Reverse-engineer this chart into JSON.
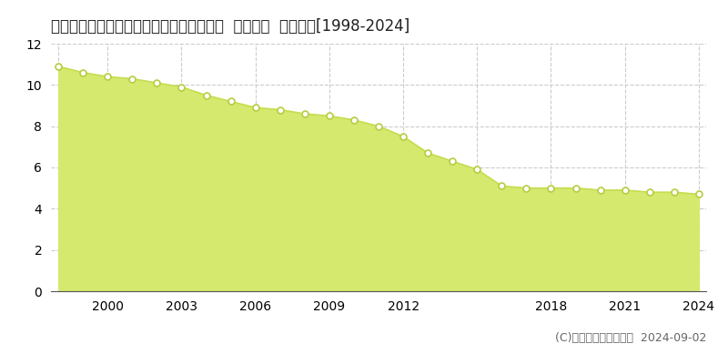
{
  "title": "山口県防府市大字向島字藪原１５０番７外  地価公示  地価推移[1998-2024]",
  "years": [
    1998,
    1999,
    2000,
    2001,
    2002,
    2003,
    2004,
    2005,
    2006,
    2007,
    2008,
    2009,
    2010,
    2011,
    2012,
    2013,
    2014,
    2015,
    2016,
    2017,
    2018,
    2019,
    2020,
    2021,
    2022,
    2023,
    2024
  ],
  "values": [
    10.9,
    10.6,
    10.4,
    10.3,
    10.1,
    9.9,
    9.5,
    9.2,
    8.9,
    8.8,
    8.6,
    8.5,
    8.3,
    8.0,
    7.5,
    6.7,
    6.3,
    5.9,
    5.1,
    5.0,
    5.0,
    5.0,
    4.9,
    4.9,
    4.8,
    4.8,
    4.7
  ],
  "fill_color": "#d4e96e",
  "line_color": "#c8dc50",
  "marker_face_color": "#ffffff",
  "marker_edge_color": "#b8cc40",
  "bg_color": "#ffffff",
  "plot_bg_color": "#ffffff",
  "grid_color": "#cccccc",
  "yticks": [
    0,
    2,
    4,
    6,
    8,
    10,
    12
  ],
  "ylim": [
    0,
    12
  ],
  "xticks": [
    1998,
    2000,
    2003,
    2006,
    2009,
    2012,
    2015,
    2018,
    2021,
    2024
  ],
  "xtick_labels": [
    "",
    "2000",
    "2003",
    "2006",
    "2009",
    "2012",
    "",
    "2018",
    "2021",
    "2024"
  ],
  "copyright_text": "(C)土地価格ドットコム  2024-09-02",
  "title_fontsize": 12,
  "tick_fontsize": 10,
  "legend_fontsize": 10,
  "copyright_fontsize": 9,
  "legend_marker_color": "#c8dc50"
}
